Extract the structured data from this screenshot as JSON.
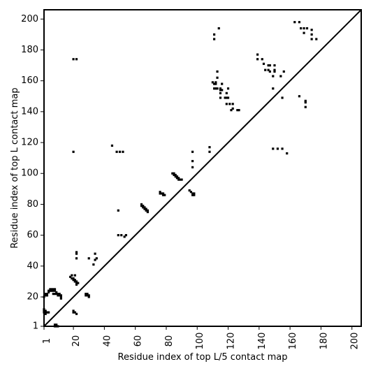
{
  "chart_data": {
    "type": "scatter",
    "title": "",
    "xlabel": "Residue index of top L/5 contact map",
    "ylabel": "Residue index of top L contact map",
    "xlim": [
      1,
      206
    ],
    "ylim": [
      1,
      206
    ],
    "x_ticks": [
      1,
      20,
      40,
      60,
      80,
      100,
      120,
      140,
      160,
      180,
      200
    ],
    "y_ticks": [
      1,
      20,
      40,
      60,
      80,
      100,
      120,
      140,
      160,
      180,
      200
    ],
    "grid": false,
    "diagonal_line": true,
    "marker_color": "#000000",
    "lower_points": [
      [
        1,
        10
      ],
      [
        1,
        11
      ],
      [
        1,
        12
      ],
      [
        2,
        9
      ],
      [
        2,
        10
      ],
      [
        2,
        11
      ],
      [
        3,
        10
      ],
      [
        4,
        10
      ],
      [
        1,
        20
      ],
      [
        2,
        21
      ],
      [
        2,
        22
      ],
      [
        3,
        21
      ],
      [
        3,
        22
      ],
      [
        4,
        23
      ],
      [
        4,
        24
      ],
      [
        5,
        24
      ],
      [
        5,
        25
      ],
      [
        6,
        24
      ],
      [
        6,
        25
      ],
      [
        7,
        24
      ],
      [
        7,
        25
      ],
      [
        8,
        24
      ],
      [
        8,
        25
      ],
      [
        7,
        22
      ],
      [
        8,
        22
      ],
      [
        9,
        22
      ],
      [
        10,
        22
      ],
      [
        9,
        23
      ],
      [
        10,
        21
      ],
      [
        11,
        21
      ],
      [
        11,
        22
      ],
      [
        12,
        20
      ],
      [
        12,
        21
      ],
      [
        12,
        19
      ],
      [
        8,
        1
      ],
      [
        8,
        2
      ],
      [
        9,
        1
      ],
      [
        9,
        2
      ],
      [
        10,
        1
      ],
      [
        18,
        33
      ],
      [
        19,
        32
      ],
      [
        19,
        34
      ],
      [
        20,
        31
      ],
      [
        20,
        32
      ],
      [
        21,
        30
      ],
      [
        21,
        31
      ],
      [
        21,
        34
      ],
      [
        22,
        29
      ],
      [
        22,
        30
      ],
      [
        23,
        29
      ],
      [
        22,
        28
      ],
      [
        20,
        10
      ],
      [
        20,
        11
      ],
      [
        21,
        10
      ],
      [
        22,
        9
      ],
      [
        28,
        21
      ],
      [
        28,
        22
      ],
      [
        29,
        21
      ],
      [
        29,
        22
      ],
      [
        30,
        21
      ],
      [
        30,
        20
      ],
      [
        30,
        45
      ],
      [
        33,
        41
      ],
      [
        34,
        44
      ],
      [
        34,
        48
      ],
      [
        35,
        45
      ],
      [
        22,
        45
      ],
      [
        22,
        48
      ],
      [
        22,
        49
      ],
      [
        20,
        114
      ],
      [
        20,
        174
      ],
      [
        22,
        174
      ],
      [
        45,
        118
      ],
      [
        48,
        114
      ],
      [
        50,
        114
      ],
      [
        52,
        114
      ],
      [
        49,
        76
      ],
      [
        49,
        60
      ],
      [
        51,
        60
      ],
      [
        53,
        59
      ],
      [
        54,
        60
      ],
      [
        64,
        79
      ],
      [
        64,
        80
      ],
      [
        65,
        79
      ],
      [
        65,
        78
      ],
      [
        66,
        78
      ],
      [
        66,
        77
      ],
      [
        67,
        77
      ],
      [
        67,
        76
      ],
      [
        68,
        76
      ],
      [
        68,
        75
      ],
      [
        76,
        88
      ],
      [
        76,
        87
      ],
      [
        77,
        87
      ],
      [
        78,
        87
      ],
      [
        78,
        86
      ],
      [
        79,
        86
      ],
      [
        84,
        100
      ],
      [
        85,
        99
      ],
      [
        85,
        100
      ],
      [
        86,
        99
      ],
      [
        86,
        98
      ],
      [
        87,
        98
      ],
      [
        87,
        97
      ],
      [
        88,
        97
      ],
      [
        88,
        96
      ],
      [
        89,
        96
      ],
      [
        90,
        96
      ],
      [
        95,
        89
      ],
      [
        96,
        88
      ],
      [
        97,
        87
      ],
      [
        97,
        86
      ],
      [
        98,
        86
      ],
      [
        98,
        87
      ],
      [
        97,
        104
      ],
      [
        97,
        108
      ],
      [
        97,
        114
      ]
    ],
    "upper_points": [
      [
        108,
        117
      ],
      [
        108,
        114
      ],
      [
        110,
        159
      ],
      [
        111,
        155
      ],
      [
        111,
        158
      ],
      [
        112,
        155
      ],
      [
        112,
        158
      ],
      [
        112,
        159
      ],
      [
        113,
        162
      ],
      [
        113,
        166
      ],
      [
        113,
        155
      ],
      [
        111,
        187
      ],
      [
        111,
        190
      ],
      [
        114,
        194
      ],
      [
        115,
        149
      ],
      [
        115,
        152
      ],
      [
        115,
        154
      ],
      [
        115,
        155
      ],
      [
        116,
        154
      ],
      [
        116,
        158
      ],
      [
        118,
        149
      ],
      [
        119,
        145
      ],
      [
        119,
        149
      ],
      [
        119,
        152
      ],
      [
        120,
        149
      ],
      [
        120,
        155
      ],
      [
        121,
        145
      ],
      [
        122,
        141
      ],
      [
        123,
        142
      ],
      [
        123,
        145
      ],
      [
        126,
        141
      ],
      [
        127,
        141
      ],
      [
        139,
        174
      ],
      [
        139,
        177
      ],
      [
        142,
        174
      ],
      [
        143,
        171
      ],
      [
        144,
        167
      ],
      [
        146,
        170
      ],
      [
        146,
        167
      ],
      [
        147,
        170
      ],
      [
        147,
        166
      ],
      [
        149,
        155
      ],
      [
        149,
        163
      ],
      [
        150,
        167
      ],
      [
        150,
        170
      ],
      [
        150,
        166
      ],
      [
        154,
        163
      ],
      [
        156,
        166
      ],
      [
        155,
        149
      ],
      [
        149,
        116
      ],
      [
        152,
        116
      ],
      [
        155,
        116
      ],
      [
        158,
        113
      ],
      [
        163,
        198
      ],
      [
        166,
        150
      ],
      [
        166,
        198
      ],
      [
        167,
        194
      ],
      [
        169,
        194
      ],
      [
        169,
        191
      ],
      [
        170,
        147
      ],
      [
        170,
        146
      ],
      [
        170,
        143
      ],
      [
        171,
        194
      ],
      [
        174,
        190
      ],
      [
        174,
        187
      ],
      [
        174,
        193
      ],
      [
        177,
        187
      ]
    ]
  }
}
